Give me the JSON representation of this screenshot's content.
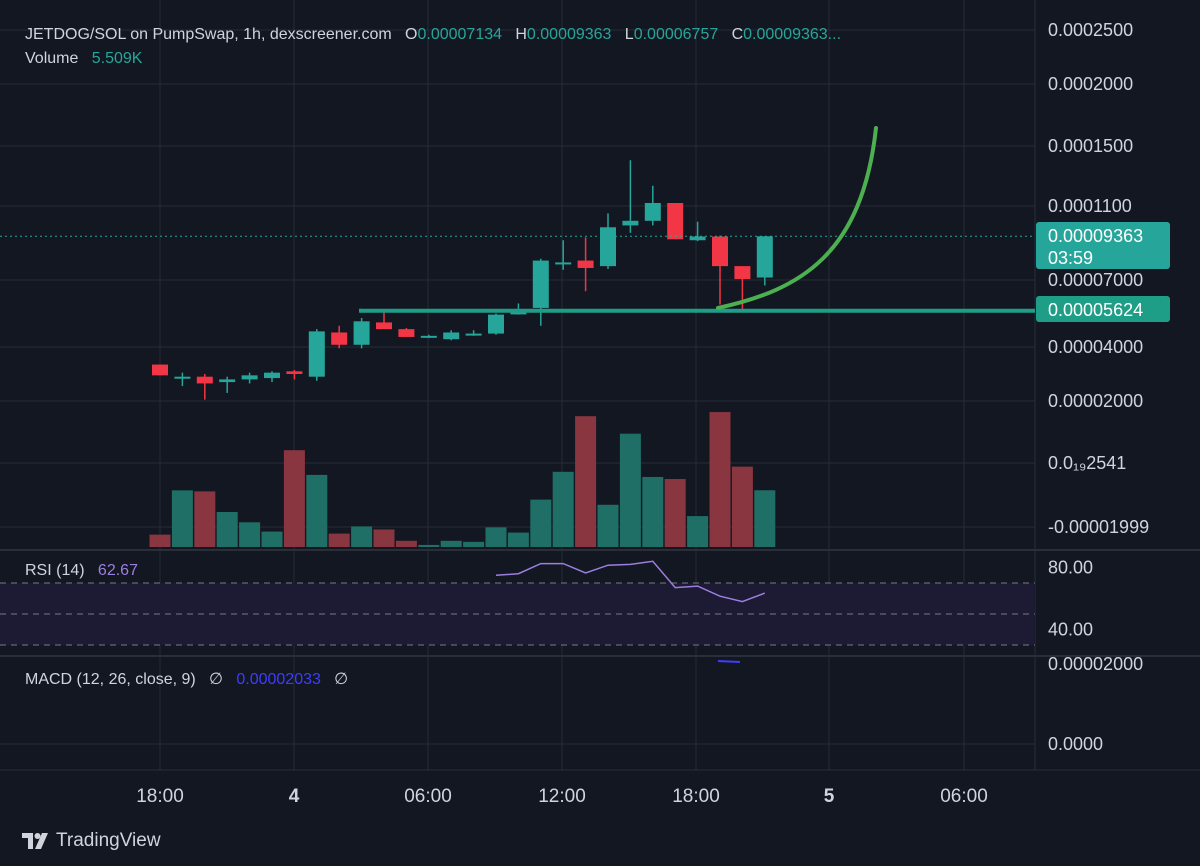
{
  "legend": {
    "symbol": "JETDOG/SOL on PumpSwap, 1h, dexscreener.com",
    "o_label": "O",
    "o_value": "0.00007134",
    "h_label": "H",
    "h_value": "0.00009363",
    "l_label": "L",
    "l_value": "0.00006757",
    "c_label": "C",
    "c_value": "0.00009363...",
    "volume_label": "Volume",
    "volume_value": "5.509K"
  },
  "rsi": {
    "label": "RSI (14)",
    "value": "62.67",
    "ticks": [
      "80.00",
      "40.00"
    ]
  },
  "macd": {
    "label": "MACD (12, 26, close, 9)",
    "sym1": "∅",
    "value": "0.00002033",
    "sym2": "∅",
    "ticks": [
      "0.00002000",
      "0.0000"
    ]
  },
  "price_axis": {
    "ticks": [
      {
        "label": "0.0002500",
        "value": 0.00025
      },
      {
        "label": "0.0002000",
        "value": 0.0002
      },
      {
        "label": "0.0001500",
        "value": 0.00015
      },
      {
        "label": "0.0001100",
        "value": 0.00011
      },
      {
        "label": "0.00007000",
        "value": 7e-05
      },
      {
        "label": "0.00004000",
        "value": 4e-05
      },
      {
        "label": "0.00002000",
        "value": 2e-05
      },
      {
        "label": "0.0₁₉2541",
        "value": 0.0
      },
      {
        "label": "-0.00001999",
        "value": -2e-05
      }
    ],
    "current_price": "0.00009363",
    "countdown": "03:59",
    "support_price": "0.00005624"
  },
  "time_axis": [
    {
      "label": "18:00",
      "bold": false
    },
    {
      "label": "4",
      "bold": true
    },
    {
      "label": "06:00",
      "bold": false
    },
    {
      "label": "12:00",
      "bold": false
    },
    {
      "label": "18:00",
      "bold": false
    },
    {
      "label": "5",
      "bold": true
    },
    {
      "label": "06:00",
      "bold": false
    }
  ],
  "brand": "TradingView",
  "colors": {
    "up": "#26a69a",
    "down": "#f23645",
    "vol_up": "#1f6f66",
    "vol_down": "#8a3640",
    "support": "#1f9e87",
    "projection": "#4caf50",
    "rsi_line": "#9c7ee0",
    "background": "#131722"
  },
  "chart_data": {
    "type": "candlestick",
    "symbol": "JETDOG/SOL",
    "interval": "1h",
    "candles": [
      {
        "o": 3.35e-05,
        "h": 3.35e-05,
        "l": 2.95e-05,
        "c": 2.95e-05,
        "v": 1.2
      },
      {
        "o": 2.9e-05,
        "h": 3.05e-05,
        "l": 2.55e-05,
        "c": 2.9e-05,
        "v": 5.5
      },
      {
        "o": 2.9e-05,
        "h": 3e-05,
        "l": 2.05e-05,
        "c": 2.65e-05,
        "v": 5.4
      },
      {
        "o": 2.7e-05,
        "h": 2.9e-05,
        "l": 2.3e-05,
        "c": 2.8e-05,
        "v": 3.4
      },
      {
        "o": 2.8e-05,
        "h": 3.05e-05,
        "l": 2.65e-05,
        "c": 2.95e-05,
        "v": 2.4
      },
      {
        "o": 2.85e-05,
        "h": 3.1e-05,
        "l": 2.7e-05,
        "c": 3.05e-05,
        "v": 1.5
      },
      {
        "o": 3.1e-05,
        "h": 3.15e-05,
        "l": 2.8e-05,
        "c": 3e-05,
        "v": 9.4
      },
      {
        "o": 2.9e-05,
        "h": 4.8e-05,
        "l": 2.75e-05,
        "c": 4.7e-05,
        "v": 7.0
      },
      {
        "o": 4.65e-05,
        "h": 4.95e-05,
        "l": 3.95e-05,
        "c": 4.1e-05,
        "v": 1.3
      },
      {
        "o": 4.1e-05,
        "h": 5.3e-05,
        "l": 3.95e-05,
        "c": 5.15e-05,
        "v": 2.0
      },
      {
        "o": 5.1e-05,
        "h": 5.65e-05,
        "l": 4.8e-05,
        "c": 4.8e-05,
        "v": 1.7
      },
      {
        "o": 4.8e-05,
        "h": 4.85e-05,
        "l": 4.45e-05,
        "c": 4.45e-05,
        "v": 0.6
      },
      {
        "o": 4.5e-05,
        "h": 4.55e-05,
        "l": 4.4e-05,
        "c": 4.5e-05,
        "v": 0.2
      },
      {
        "o": 4.35e-05,
        "h": 4.75e-05,
        "l": 4.3e-05,
        "c": 4.65e-05,
        "v": 0.6
      },
      {
        "o": 4.6e-05,
        "h": 4.75e-05,
        "l": 4.5e-05,
        "c": 4.6e-05,
        "v": 0.5
      },
      {
        "o": 4.6e-05,
        "h": 5.5e-05,
        "l": 4.55e-05,
        "c": 5.45e-05,
        "v": 1.9
      },
      {
        "o": 5.55e-05,
        "h": 5.95e-05,
        "l": 5.45e-05,
        "c": 5.55e-05,
        "v": 1.4
      },
      {
        "o": 5.75e-05,
        "h": 8.15e-05,
        "l": 4.95e-05,
        "c": 8.05e-05,
        "v": 4.6
      },
      {
        "o": 7.95e-05,
        "h": 9.15e-05,
        "l": 7.55e-05,
        "c": 7.95e-05,
        "v": 7.3
      },
      {
        "o": 8.05e-05,
        "h": 9.3e-05,
        "l": 6.5e-05,
        "c": 7.65e-05,
        "v": 12.7
      },
      {
        "o": 7.75e-05,
        "h": 0.000106,
        "l": 7.6e-05,
        "c": 9.85e-05,
        "v": 4.1
      },
      {
        "o": 9.95e-05,
        "h": 0.0001405,
        "l": 9.55e-05,
        "c": 0.000102,
        "v": 11.0
      },
      {
        "o": 0.000102,
        "h": 0.0001235,
        "l": 9.95e-05,
        "c": 0.000112,
        "v": 6.8
      },
      {
        "o": 0.000112,
        "h": 0.000112,
        "l": 9.2e-05,
        "c": 9.2e-05,
        "v": 6.6
      },
      {
        "o": 9.15e-05,
        "h": 0.0001015,
        "l": 9.1e-05,
        "c": 9.35e-05,
        "v": 3.0
      },
      {
        "o": 9.35e-05,
        "h": 9.4e-05,
        "l": 5.9e-05,
        "c": 7.75e-05,
        "v": 13.1
      },
      {
        "o": 7.75e-05,
        "h": 7.75e-05,
        "l": 5.6e-05,
        "c": 7.05e-05,
        "v": 7.8
      },
      {
        "o": 7.134e-05,
        "h": 9.363e-05,
        "l": 6.757e-05,
        "c": 9.363e-05,
        "v": 5.509
      }
    ],
    "volume_unit": "K",
    "support_level": 5.624e-05,
    "rsi_values": [
      75,
      76,
      82.5,
      82.5,
      76.5,
      81.5,
      82,
      84,
      67,
      68,
      61.5,
      58,
      63.5
    ],
    "rsi_levels": [
      70,
      50,
      30
    ],
    "ylim": [
      -2e-05,
      0.00025
    ]
  }
}
